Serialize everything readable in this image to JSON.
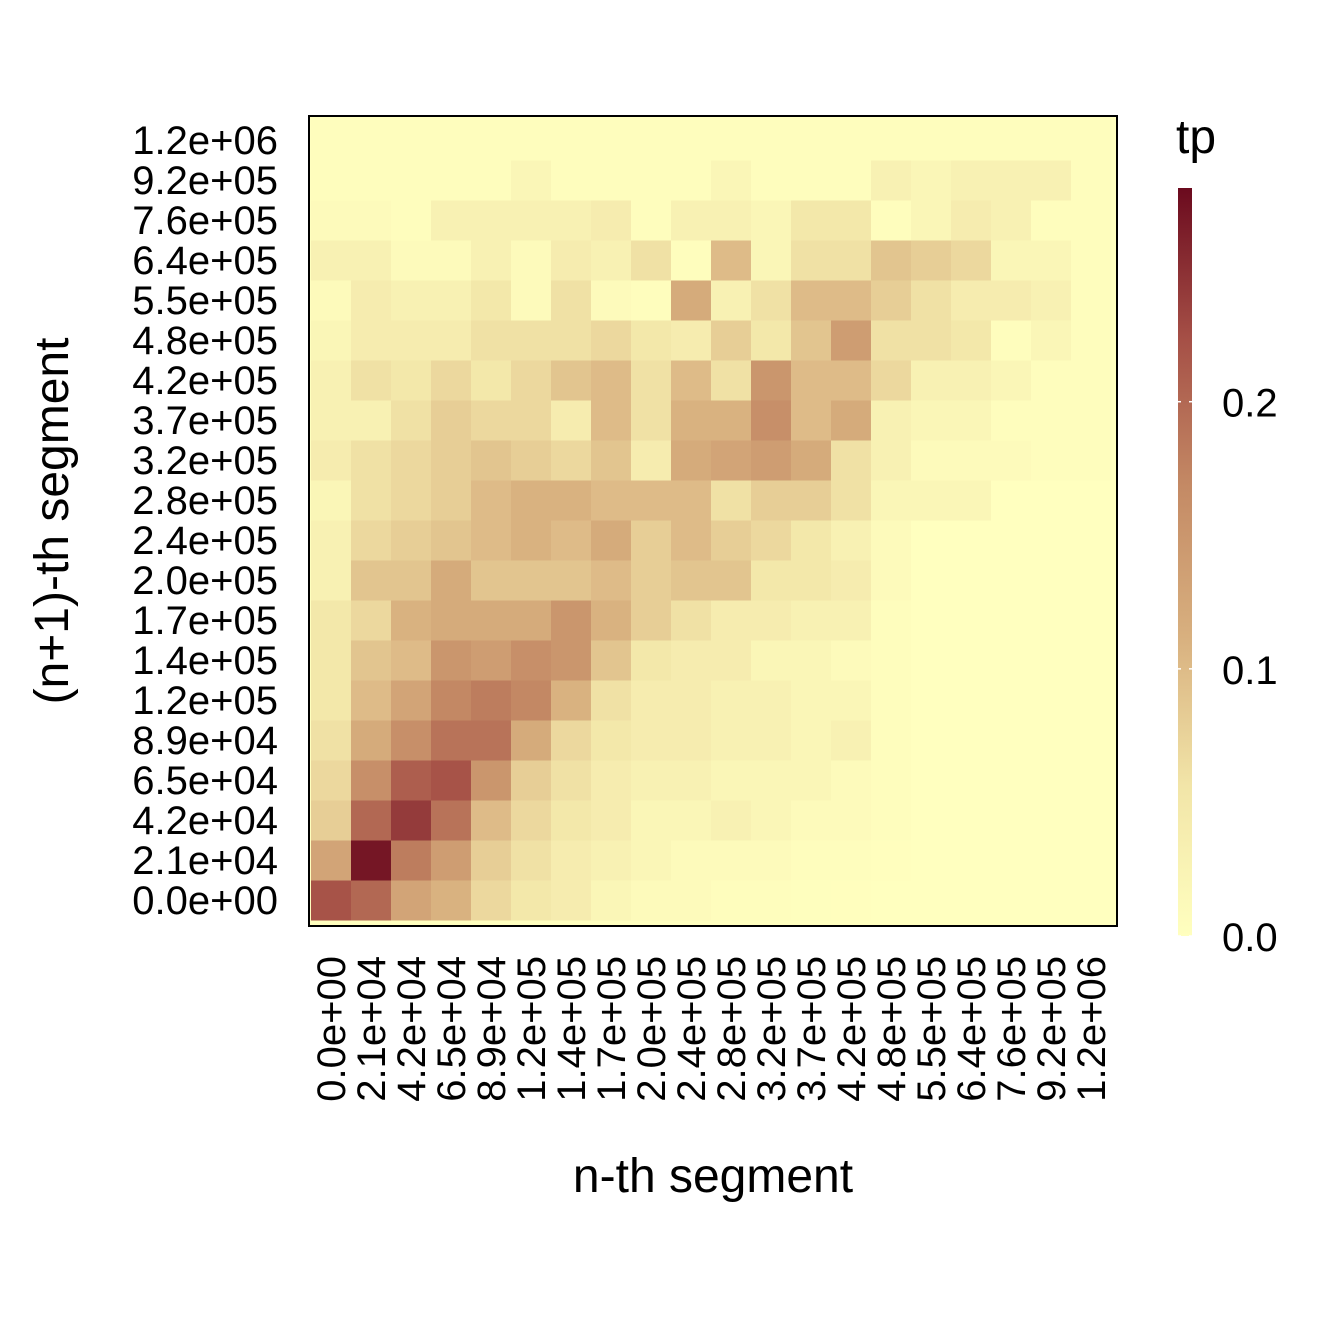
{
  "chart_data": {
    "type": "heatmap",
    "title": "",
    "xlabel": "n-th segment",
    "ylabel": "(n+1)-th segment",
    "x_categories": [
      "0.0e+00",
      "2.1e+04",
      "4.2e+04",
      "6.5e+04",
      "8.9e+04",
      "1.2e+05",
      "1.4e+05",
      "1.7e+05",
      "2.0e+05",
      "2.4e+05",
      "2.8e+05",
      "3.2e+05",
      "3.7e+05",
      "4.2e+05",
      "4.8e+05",
      "5.5e+05",
      "6.4e+05",
      "7.6e+05",
      "9.2e+05",
      "1.2e+06"
    ],
    "y_categories": [
      "0.0e+00",
      "2.1e+04",
      "4.2e+04",
      "6.5e+04",
      "8.9e+04",
      "1.2e+05",
      "1.4e+05",
      "1.7e+05",
      "2.0e+05",
      "2.4e+05",
      "2.8e+05",
      "3.2e+05",
      "3.7e+05",
      "4.2e+05",
      "4.8e+05",
      "5.5e+05",
      "6.4e+05",
      "7.6e+05",
      "9.2e+05",
      "1.2e+06"
    ],
    "values": [
      [
        0.22,
        0.2,
        0.13,
        0.11,
        0.07,
        0.05,
        0.04,
        0.02,
        0.01,
        0.01,
        0.005,
        0.005,
        0.003,
        0.002,
        0.001,
        0,
        0,
        0,
        0,
        0
      ],
      [
        0.13,
        0.27,
        0.18,
        0.14,
        0.08,
        0.06,
        0.04,
        0.03,
        0.02,
        0.01,
        0.01,
        0.01,
        0.005,
        0.005,
        0.002,
        0,
        0,
        0,
        0,
        0
      ],
      [
        0.08,
        0.2,
        0.24,
        0.19,
        0.1,
        0.07,
        0.05,
        0.04,
        0.02,
        0.02,
        0.03,
        0.02,
        0.01,
        0.01,
        0.005,
        0,
        0,
        0,
        0,
        0
      ],
      [
        0.07,
        0.16,
        0.21,
        0.22,
        0.15,
        0.08,
        0.06,
        0.04,
        0.03,
        0.03,
        0.02,
        0.02,
        0.02,
        0.01,
        0.005,
        0,
        0,
        0,
        0,
        0
      ],
      [
        0.06,
        0.12,
        0.16,
        0.19,
        0.19,
        0.12,
        0.07,
        0.05,
        0.04,
        0.04,
        0.03,
        0.03,
        0.02,
        0.03,
        0.005,
        0,
        0,
        0,
        0,
        0
      ],
      [
        0.05,
        0.1,
        0.13,
        0.17,
        0.18,
        0.17,
        0.11,
        0.06,
        0.04,
        0.04,
        0.03,
        0.03,
        0.02,
        0.02,
        0.005,
        0,
        0,
        0,
        0,
        0
      ],
      [
        0.05,
        0.09,
        0.1,
        0.15,
        0.14,
        0.16,
        0.15,
        0.09,
        0.05,
        0.04,
        0.04,
        0.02,
        0.02,
        0.01,
        0.005,
        0,
        0,
        0,
        0,
        0
      ],
      [
        0.05,
        0.07,
        0.11,
        0.12,
        0.12,
        0.12,
        0.15,
        0.11,
        0.08,
        0.06,
        0.04,
        0.04,
        0.03,
        0.03,
        0.005,
        0,
        0,
        0,
        0,
        0
      ],
      [
        0.03,
        0.09,
        0.09,
        0.12,
        0.09,
        0.09,
        0.09,
        0.1,
        0.08,
        0.09,
        0.09,
        0.05,
        0.05,
        0.04,
        0.01,
        0,
        0,
        0,
        0,
        0
      ],
      [
        0.03,
        0.07,
        0.08,
        0.09,
        0.1,
        0.11,
        0.1,
        0.12,
        0.08,
        0.1,
        0.08,
        0.07,
        0.05,
        0.03,
        0.01,
        0,
        0,
        0,
        0,
        0
      ],
      [
        0.02,
        0.06,
        0.07,
        0.08,
        0.1,
        0.11,
        0.11,
        0.1,
        0.1,
        0.1,
        0.06,
        0.08,
        0.08,
        0.06,
        0.02,
        0.02,
        0.02,
        0,
        0,
        0
      ],
      [
        0.04,
        0.06,
        0.07,
        0.08,
        0.09,
        0.08,
        0.07,
        0.09,
        0.04,
        0.12,
        0.13,
        0.14,
        0.12,
        0.06,
        0.03,
        0.01,
        0.01,
        0.01,
        0.005,
        0.005
      ],
      [
        0.03,
        0.03,
        0.06,
        0.08,
        0.07,
        0.07,
        0.04,
        0.1,
        0.06,
        0.11,
        0.11,
        0.16,
        0.1,
        0.12,
        0.03,
        0.02,
        0.02,
        0.005,
        0.005,
        0.005
      ],
      [
        0.03,
        0.06,
        0.05,
        0.07,
        0.05,
        0.07,
        0.09,
        0.1,
        0.06,
        0.1,
        0.06,
        0.15,
        0.1,
        0.1,
        0.07,
        0.03,
        0.03,
        0.02,
        0.005,
        0.005
      ],
      [
        0.02,
        0.04,
        0.04,
        0.04,
        0.06,
        0.06,
        0.06,
        0.07,
        0.05,
        0.04,
        0.08,
        0.05,
        0.09,
        0.14,
        0.06,
        0.06,
        0.05,
        0.005,
        0.02,
        0.005
      ],
      [
        0.01,
        0.04,
        0.03,
        0.03,
        0.05,
        0.01,
        0.06,
        0.01,
        0.005,
        0.12,
        0.03,
        0.06,
        0.1,
        0.1,
        0.08,
        0.06,
        0.04,
        0.04,
        0.03,
        0.005
      ],
      [
        0.03,
        0.03,
        0.01,
        0.01,
        0.03,
        0.01,
        0.04,
        0.03,
        0.06,
        0.005,
        0.1,
        0.02,
        0.06,
        0.06,
        0.09,
        0.08,
        0.07,
        0.02,
        0.02,
        0.005
      ],
      [
        0.01,
        0.01,
        0.005,
        0.03,
        0.03,
        0.03,
        0.03,
        0.04,
        0.005,
        0.03,
        0.03,
        0.02,
        0.05,
        0.05,
        0.005,
        0.02,
        0.04,
        0.03,
        0.005,
        0.005
      ],
      [
        0.005,
        0.005,
        0.005,
        0.005,
        0.005,
        0.02,
        0.005,
        0.005,
        0.005,
        0.005,
        0.02,
        0.005,
        0.005,
        0.005,
        0.03,
        0.02,
        0.03,
        0.03,
        0.03,
        0.005
      ],
      [
        0.005,
        0.005,
        0.005,
        0.005,
        0.005,
        0.005,
        0.005,
        0.005,
        0.005,
        0.005,
        0.005,
        0.005,
        0.005,
        0.005,
        0.005,
        0.005,
        0.005,
        0.005,
        0.005,
        0.005
      ]
    ],
    "legend": {
      "title": "tp",
      "ticks": [
        0.0,
        0.1,
        0.2
      ],
      "tick_labels": [
        "0.0",
        "0.1",
        "0.2"
      ],
      "range": [
        0,
        0.28
      ],
      "colors": [
        "#FFFFBF",
        "#F2E5A8",
        "#D8B07F",
        "#C48A65",
        "#A54F46",
        "#6B0A1E"
      ],
      "placement": "right"
    }
  }
}
